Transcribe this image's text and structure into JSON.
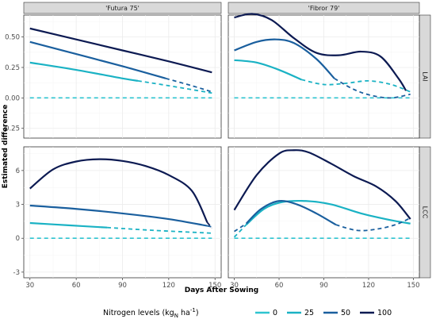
{
  "chart_data": {
    "type": "line",
    "xlabel": "Days After Sowing",
    "ylabel": "Estimated difference",
    "x_ticks": [
      30,
      60,
      90,
      120,
      150
    ],
    "xlim": [
      26,
      154
    ],
    "columns": [
      "'Futura 75'",
      "'Fibror 79'"
    ],
    "rows": [
      {
        "strip": "LAI",
        "ylim": [
          -0.33,
          0.68
        ],
        "y_ticks": [
          -0.25,
          0.0,
          0.25,
          0.5
        ],
        "y_tick_labels": [
          "-0.25",
          "0.00",
          "0.25",
          "0.50"
        ]
      },
      {
        "strip": "LCC",
        "ylim": [
          -3.5,
          8.1
        ],
        "y_ticks": [
          -3,
          0,
          3,
          6
        ],
        "y_tick_labels": [
          "-3",
          "0",
          "3",
          "6"
        ]
      }
    ],
    "legend": {
      "title": "Nitrogen levels (kgN ha-1)",
      "title_main": "Nitrogen  levels (kg",
      "title_sub": "N",
      "title_unit": " ha",
      "title_sup": "-1",
      "title_close": ")",
      "placement": "bottom",
      "entries": [
        "0",
        "25",
        "50",
        "100"
      ]
    },
    "colors": {
      "0": "#2ec4d0",
      "25": "#1ab2c4",
      "50": "#1a5f9e",
      "100": "#0c1a52"
    },
    "panels": [
      {
        "row": 0,
        "col": 0,
        "series": [
          {
            "name": "0",
            "solid": [
              [
                30,
                0.0
              ],
              [
                148,
                0.0
              ]
            ],
            "dashed_all": true
          },
          {
            "name": "25",
            "solid": [
              [
                30,
                0.29
              ],
              [
                60,
                0.23
              ],
              [
                90,
                0.16
              ],
              [
                100,
                0.14
              ]
            ],
            "dashed": [
              [
                100,
                0.14
              ],
              [
                120,
                0.1
              ],
              [
                148,
                0.04
              ]
            ]
          },
          {
            "name": "50",
            "solid": [
              [
                30,
                0.46
              ],
              [
                60,
                0.36
              ],
              [
                90,
                0.26
              ],
              [
                118,
                0.16
              ]
            ],
            "dashed": [
              [
                118,
                0.16
              ],
              [
                135,
                0.1
              ],
              [
                148,
                0.05
              ]
            ]
          },
          {
            "name": "100",
            "solid": [
              [
                30,
                0.57
              ],
              [
                60,
                0.48
              ],
              [
                90,
                0.39
              ],
              [
                120,
                0.3
              ],
              [
                148,
                0.21
              ]
            ]
          }
        ]
      },
      {
        "row": 0,
        "col": 1,
        "series": [
          {
            "name": "0",
            "solid": [
              [
                30,
                0.0
              ],
              [
                148,
                0.0
              ]
            ],
            "dashed_all": true
          },
          {
            "name": "25",
            "solid": [
              [
                30,
                0.31
              ],
              [
                45,
                0.29
              ],
              [
                60,
                0.23
              ],
              [
                75,
                0.15
              ]
            ],
            "dashed": [
              [
                75,
                0.15
              ],
              [
                90,
                0.11
              ],
              [
                105,
                0.12
              ],
              [
                120,
                0.14
              ],
              [
                135,
                0.11
              ],
              [
                148,
                0.05
              ]
            ]
          },
          {
            "name": "50",
            "solid": [
              [
                30,
                0.39
              ],
              [
                45,
                0.46
              ],
              [
                58,
                0.48
              ],
              [
                70,
                0.45
              ],
              [
                85,
                0.32
              ],
              [
                97,
                0.16
              ]
            ],
            "dashed": [
              [
                97,
                0.16
              ],
              [
                110,
                0.07
              ],
              [
                122,
                0.02
              ],
              [
                135,
                0.0
              ],
              [
                148,
                0.03
              ]
            ]
          },
          {
            "name": "100",
            "solid": [
              [
                30,
                0.66
              ],
              [
                42,
                0.69
              ],
              [
                55,
                0.64
              ],
              [
                70,
                0.49
              ],
              [
                85,
                0.37
              ],
              [
                100,
                0.35
              ],
              [
                115,
                0.38
              ],
              [
                128,
                0.34
              ],
              [
                140,
                0.16
              ],
              [
                145,
                0.06
              ]
            ]
          }
        ]
      },
      {
        "row": 1,
        "col": 0,
        "series": [
          {
            "name": "0",
            "solid": [
              [
                30,
                0.0
              ],
              [
                148,
                0.0
              ]
            ],
            "dashed_all": true
          },
          {
            "name": "25",
            "solid": [
              [
                30,
                1.35
              ],
              [
                55,
                1.15
              ],
              [
                80,
                0.95
              ]
            ],
            "dashed": [
              [
                80,
                0.95
              ],
              [
                110,
                0.7
              ],
              [
                148,
                0.45
              ]
            ]
          },
          {
            "name": "50",
            "solid": [
              [
                30,
                2.9
              ],
              [
                60,
                2.6
              ],
              [
                90,
                2.2
              ],
              [
                120,
                1.7
              ],
              [
                145,
                1.1
              ]
            ],
            "dashed": [
              [
                145,
                1.1
              ],
              [
                148,
                1.0
              ]
            ]
          },
          {
            "name": "100",
            "solid": [
              [
                30,
                4.4
              ],
              [
                45,
                6.1
              ],
              [
                60,
                6.8
              ],
              [
                75,
                7.0
              ],
              [
                90,
                6.85
              ],
              [
                105,
                6.4
              ],
              [
                120,
                5.6
              ],
              [
                135,
                4.2
              ],
              [
                145,
                1.4
              ]
            ],
            "dashed": [
              [
                145,
                1.4
              ],
              [
                148,
                0.9
              ]
            ]
          }
        ]
      },
      {
        "row": 1,
        "col": 1,
        "series": [
          {
            "name": "0",
            "solid": [
              [
                30,
                0.0
              ],
              [
                148,
                0.0
              ]
            ],
            "dashed_all": true
          },
          {
            "name": "25",
            "dashed": [
              [
                30,
                0.1
              ],
              [
                38,
                1.2
              ]
            ],
            "solid": [
              [
                38,
                1.2
              ],
              [
                50,
                2.6
              ],
              [
                62,
                3.2
              ],
              [
                78,
                3.3
              ],
              [
                95,
                3.0
              ],
              [
                115,
                2.2
              ],
              [
                135,
                1.6
              ],
              [
                148,
                1.3
              ]
            ]
          },
          {
            "name": "50",
            "dashed": [
              [
                30,
                0.6
              ],
              [
                38,
                1.3
              ]
            ],
            "solid": [
              [
                38,
                1.3
              ],
              [
                48,
                2.6
              ],
              [
                60,
                3.3
              ],
              [
                72,
                3.0
              ],
              [
                85,
                2.2
              ],
              [
                98,
                1.2
              ]
            ],
            "dashed2": [
              [
                98,
                1.2
              ],
              [
                112,
                0.7
              ],
              [
                125,
                0.8
              ],
              [
                138,
                1.2
              ],
              [
                148,
                1.8
              ]
            ]
          },
          {
            "name": "100",
            "solid": [
              [
                30,
                2.5
              ],
              [
                45,
                5.6
              ],
              [
                60,
                7.5
              ],
              [
                70,
                7.8
              ],
              [
                80,
                7.6
              ],
              [
                95,
                6.6
              ],
              [
                110,
                5.5
              ],
              [
                125,
                4.6
              ],
              [
                138,
                3.3
              ],
              [
                148,
                1.7
              ]
            ]
          }
        ]
      }
    ]
  }
}
